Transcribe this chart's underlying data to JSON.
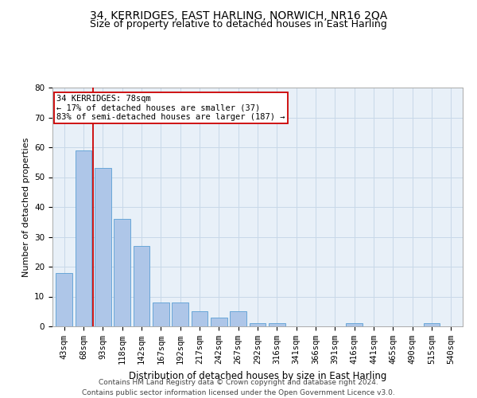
{
  "title": "34, KERRIDGES, EAST HARLING, NORWICH, NR16 2QA",
  "subtitle": "Size of property relative to detached houses in East Harling",
  "xlabel": "Distribution of detached houses by size in East Harling",
  "ylabel": "Number of detached properties",
  "categories": [
    "43sqm",
    "68sqm",
    "93sqm",
    "118sqm",
    "142sqm",
    "167sqm",
    "192sqm",
    "217sqm",
    "242sqm",
    "267sqm",
    "292sqm",
    "316sqm",
    "341sqm",
    "366sqm",
    "391sqm",
    "416sqm",
    "441sqm",
    "465sqm",
    "490sqm",
    "515sqm",
    "540sqm"
  ],
  "values": [
    18,
    59,
    53,
    36,
    27,
    8,
    8,
    5,
    3,
    5,
    1,
    1,
    0,
    0,
    0,
    1,
    0,
    0,
    0,
    1,
    0
  ],
  "bar_color": "#aec6e8",
  "bar_edge_color": "#5a9fd4",
  "grid_color": "#c8d8e8",
  "background_color": "#e8f0f8",
  "property_label": "34 KERRIDGES: 78sqm",
  "line_x_index": 1.5,
  "annotation_line1": "← 17% of detached houses are smaller (37)",
  "annotation_line2": "83% of semi-detached houses are larger (187) →",
  "annotation_box_color": "#ffffff",
  "annotation_box_edge": "#cc0000",
  "vline_color": "#cc0000",
  "footer_line1": "Contains HM Land Registry data © Crown copyright and database right 2024.",
  "footer_line2": "Contains public sector information licensed under the Open Government Licence v3.0.",
  "ylim": [
    0,
    80
  ],
  "yticks": [
    0,
    10,
    20,
    30,
    40,
    50,
    60,
    70,
    80
  ],
  "title_fontsize": 10,
  "subtitle_fontsize": 9,
  "xlabel_fontsize": 8.5,
  "ylabel_fontsize": 8,
  "tick_fontsize": 7.5,
  "annotation_fontsize": 7.5,
  "footer_fontsize": 6.5
}
